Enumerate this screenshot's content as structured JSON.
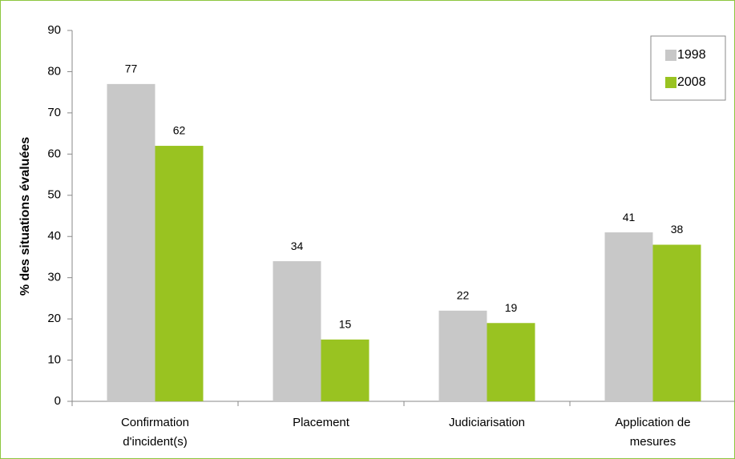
{
  "chart_data": {
    "type": "bar",
    "ylabel": "% des situations évaluées",
    "categories": [
      [
        "Confirmation",
        "d'incident(s)"
      ],
      [
        "Placement"
      ],
      [
        "Judiciarisation"
      ],
      [
        "Application de",
        "mesures"
      ]
    ],
    "series": [
      {
        "name": "1998",
        "color": "#c8c8c8",
        "values": [
          77,
          34,
          22,
          41
        ]
      },
      {
        "name": "2008",
        "color": "#99c321",
        "values": [
          62,
          15,
          19,
          38
        ]
      }
    ],
    "ylim": [
      0,
      90
    ],
    "yticks": [
      0,
      10,
      20,
      30,
      40,
      50,
      60,
      70,
      80,
      90
    ],
    "legend": "upper right",
    "grid": false
  }
}
